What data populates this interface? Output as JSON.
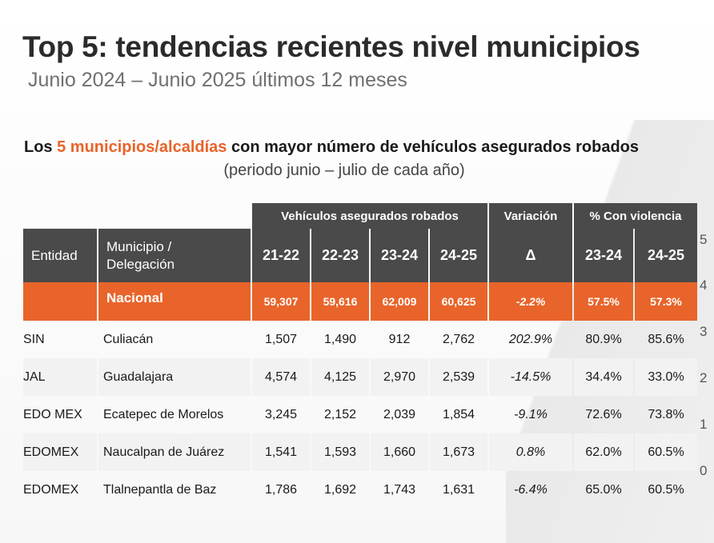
{
  "title": "Top 5: tendencias recientes nivel municipios",
  "subtitle": "Junio 2024 – Junio 2025 últimos 12 meses",
  "table_title": {
    "prefix": "Los ",
    "highlight": "5 municipios/alcaldías",
    "suffix": " con mayor número de vehículos asegurados robados"
  },
  "table_subtitle": "(periodo junio – julio de cada año)",
  "colors": {
    "accent": "#e8642a",
    "header": "#4a4a4a"
  },
  "group_headers": {
    "vehicles": "Vehículos asegurados robados",
    "variation": "Variación",
    "violence": "% Con violencia"
  },
  "columns": {
    "entidad": "Entidad",
    "municipio": "Municipio / Delegación",
    "y2122": "21-22",
    "y2223": "22-23",
    "y2324": "23-24",
    "y2425": "24-25",
    "delta": "Δ",
    "v2324": "23-24",
    "v2425": "24-25"
  },
  "national": {
    "name": "Nacional",
    "y2122": "59,307",
    "y2223": "59,616",
    "y2324": "62,009",
    "y2425": "60,625",
    "delta": "-2.2%",
    "v2324": "57.5%",
    "v2425": "57.3%"
  },
  "rows": [
    {
      "entidad": "SIN",
      "municipio": "Culiacán",
      "y2122": "1,507",
      "y2223": "1,490",
      "y2324": "912",
      "y2425": "2,762",
      "delta": "202.9%",
      "v2324": "80.9%",
      "v2425": "85.6%"
    },
    {
      "entidad": "JAL",
      "municipio": "Guadalajara",
      "y2122": "4,574",
      "y2223": "4,125",
      "y2324": "2,970",
      "y2425": "2,539",
      "delta": "-14.5%",
      "v2324": "34.4%",
      "v2425": "33.0%"
    },
    {
      "entidad": "EDO MEX",
      "municipio": "Ecatepec de Morelos",
      "y2122": "3,245",
      "y2223": "2,152",
      "y2324": "2,039",
      "y2425": "1,854",
      "delta": "-9.1%",
      "v2324": "72.6%",
      "v2425": "73.8%"
    },
    {
      "entidad": "EDOMEX",
      "municipio": "Naucalpan de Juárez",
      "y2122": "1,541",
      "y2223": "1,593",
      "y2324": "1,660",
      "y2425": "1,673",
      "delta": "0.8%",
      "v2324": "62.0%",
      "v2425": "60.5%"
    },
    {
      "entidad": "EDOMEX",
      "municipio": "Tlalnepantla de Baz",
      "y2122": "1,786",
      "y2223": "1,692",
      "y2324": "1,743",
      "y2425": "1,631",
      "delta": "-6.4%",
      "v2324": "65.0%",
      "v2425": "60.5%"
    }
  ],
  "side_axis": [
    "5",
    "4",
    "3",
    "2",
    "1",
    "0"
  ]
}
